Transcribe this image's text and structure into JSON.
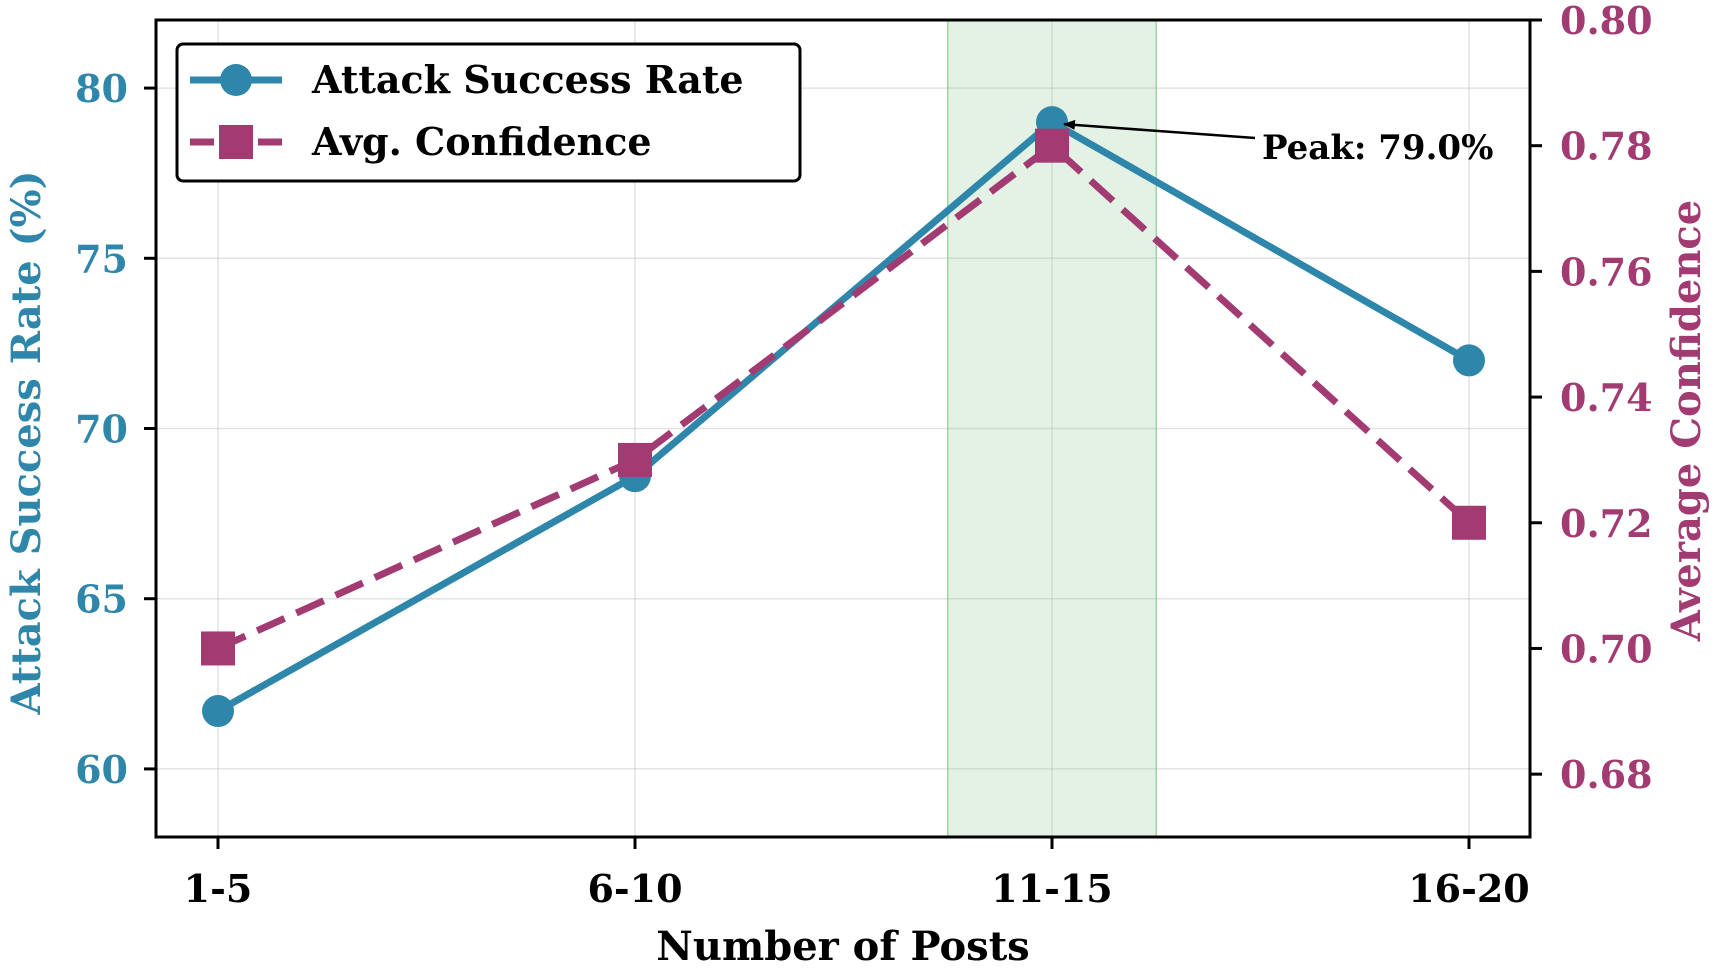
{
  "chart_data": {
    "type": "line",
    "categories": [
      "1-5",
      "6-10",
      "11-15",
      "16-20"
    ],
    "xlabel": "Number of Posts",
    "series": [
      {
        "name": "Attack Success Rate",
        "axis": "left",
        "values": [
          61.7,
          68.6,
          79.0,
          72.0
        ],
        "color": "#2e86ab",
        "marker": "circle",
        "linestyle": "solid"
      },
      {
        "name": "Avg. Confidence",
        "axis": "right",
        "values": [
          0.7,
          0.73,
          0.78,
          0.72
        ],
        "color": "#a23b72",
        "marker": "square",
        "linestyle": "dashed"
      }
    ],
    "y_left": {
      "label": "Attack Success Rate (%)",
      "ylim": [
        58,
        82
      ],
      "ticks": [
        "60",
        "65",
        "70",
        "75",
        "80"
      ],
      "tick_values": [
        60,
        65,
        70,
        75,
        80
      ]
    },
    "y_right": {
      "label": "Average Confidence",
      "ylim": [
        0.67,
        0.8
      ],
      "ticks": [
        "0.68",
        "0.70",
        "0.72",
        "0.74",
        "0.76",
        "0.78",
        "0.80"
      ],
      "tick_values": [
        0.68,
        0.7,
        0.72,
        0.74,
        0.76,
        0.78,
        0.8
      ]
    },
    "highlight": {
      "category": "11-15",
      "from": 1.75,
      "to": 2.25,
      "color": "#c8e6c9"
    },
    "annotation": {
      "text": "Peak: 79.0%",
      "category_index": 2,
      "value": 79.0
    },
    "grid": true,
    "legend": "top-left"
  }
}
